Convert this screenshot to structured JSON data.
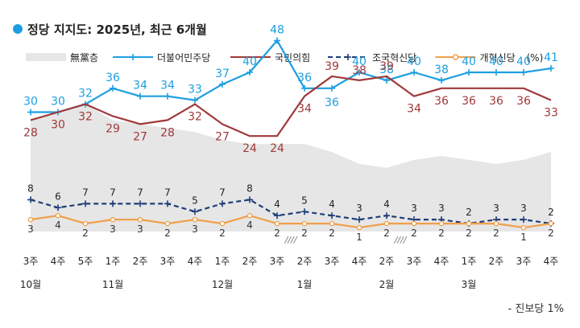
{
  "chart_data": {
    "type": "line",
    "title": "정당 지지도: 2025년, 최근 6개월",
    "legend_position": "top",
    "legend_unit": "(%)",
    "footnote": "- 진보당 1%",
    "gap_markers": [
      {
        "after_index": 9,
        "text": "////"
      },
      {
        "after_index": 13,
        "text": "////"
      }
    ],
    "x": [
      "3주",
      "4주",
      "5주",
      "1주",
      "2주",
      "3주",
      "4주",
      "1주",
      "2주",
      "3주",
      "2주",
      "3주",
      "4주",
      "2주",
      "3주",
      "4주",
      "1주",
      "2주",
      "3주",
      "4주"
    ],
    "months": [
      {
        "label": "10월",
        "at_index": 0
      },
      {
        "label": "11월",
        "at_index": 3
      },
      {
        "label": "12월",
        "at_index": 7
      },
      {
        "label": "1월",
        "at_index": 10
      },
      {
        "label": "2월",
        "at_index": 13
      },
      {
        "label": "3월",
        "at_index": 16
      }
    ],
    "series": [
      {
        "name": "無黨층",
        "type": "area",
        "color": "#e6e6e6",
        "values": [
          28,
          30,
          32,
          28,
          27,
          26,
          25,
          23,
          22,
          22,
          22,
          20,
          17,
          16,
          18,
          19,
          18,
          17,
          18,
          20
        ]
      },
      {
        "name": "더불어민주당",
        "color": "#1e9ee0",
        "marker": "plus",
        "values": [
          30,
          30,
          32,
          36,
          34,
          34,
          33,
          37,
          40,
          48,
          36,
          36,
          40,
          38,
          40,
          38,
          40,
          40,
          40,
          41
        ]
      },
      {
        "name": "국민의힘",
        "color": "#a0393a",
        "values": [
          28,
          30,
          32,
          29,
          27,
          28,
          32,
          27,
          24,
          24,
          34,
          39,
          38,
          39,
          34,
          36,
          36,
          36,
          36,
          33
        ]
      },
      {
        "name": "조국혁신당",
        "color": "#1f3d78",
        "dashed": true,
        "marker": "plus",
        "values": [
          8,
          6,
          7,
          7,
          7,
          7,
          5,
          7,
          8,
          4,
          5,
          4,
          3,
          4,
          3,
          3,
          2,
          3,
          3,
          2
        ]
      },
      {
        "name": "개혁신당",
        "color": "#f0a04a",
        "marker": "circle",
        "values": [
          3,
          4,
          2,
          3,
          3,
          2,
          3,
          2,
          4,
          2,
          2,
          2,
          1,
          2,
          2,
          2,
          2,
          2,
          1,
          2
        ]
      }
    ]
  }
}
